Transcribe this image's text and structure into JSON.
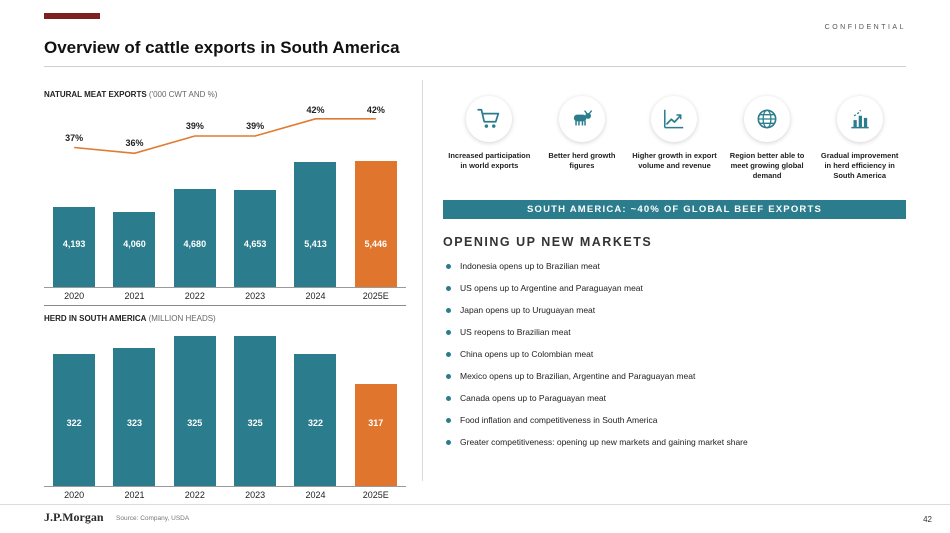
{
  "meta": {
    "confidential": "CONFIDENTIAL",
    "logo": "J.P.Morgan",
    "source": "Source: Company, USDA",
    "page_number": "42"
  },
  "header": {
    "title": "Overview of cattle exports in South America"
  },
  "colors": {
    "teal": "#2B7D8E",
    "orange": "#E0752D",
    "line_orange": "#E07A30",
    "maroon": "#7E2021"
  },
  "chart_data": [
    {
      "type": "bar",
      "title": "NATURAL MEAT EXPORTS",
      "title_suffix": " ('000 CWT AND %)",
      "categories": [
        "2020",
        "2021",
        "2022",
        "2023",
        "2024",
        "2025E"
      ],
      "series": [
        {
          "name": "exports_000_cwt",
          "type": "bar",
          "values": [
            4193,
            4060,
            4680,
            4653,
            5413,
            5446
          ],
          "labels": [
            "4,193",
            "4,060",
            "4,680",
            "4,653",
            "5,413",
            "5,446"
          ]
        },
        {
          "name": "share_of_world_exports_pct",
          "type": "line",
          "values": [
            37,
            36,
            39,
            39,
            42,
            42
          ],
          "labels": [
            "37%",
            "36%",
            "39%",
            "39%",
            "42%",
            "42%"
          ]
        }
      ],
      "ylim": [
        2000,
        5446
      ],
      "line_range": [
        35,
        43
      ],
      "highlight_last": true,
      "legend_position": "none",
      "grid": false
    },
    {
      "type": "bar",
      "title": "HERD IN SOUTH AMERICA",
      "title_suffix": " (MILLION HEADS)",
      "categories": [
        "2020",
        "2021",
        "2022",
        "2023",
        "2024",
        "2025E"
      ],
      "series": [
        {
          "name": "herd_million_heads",
          "type": "bar",
          "values": [
            322,
            323,
            325,
            325,
            322,
            317
          ],
          "labels": [
            "322",
            "323",
            "325",
            "325",
            "322",
            "317"
          ]
        }
      ],
      "ylim": [
        300,
        325
      ],
      "highlight_last": true,
      "legend_position": "none",
      "grid": false
    }
  ],
  "highlights": [
    {
      "icon": "cart-icon",
      "label": "Increased participation in world exports"
    },
    {
      "icon": "cattle-icon",
      "label": "Better herd growth figures"
    },
    {
      "icon": "growth-chart-icon",
      "label": "Higher growth in export volume and revenue"
    },
    {
      "icon": "globe-icon",
      "label": "Region better able to meet growing global demand"
    },
    {
      "icon": "herd-efficiency-chart-icon",
      "label": "Gradual improvement in herd efficiency in South America"
    }
  ],
  "banner": {
    "text": "SOUTH AMERICA: ~40% OF GLOBAL BEEF EXPORTS"
  },
  "markets": {
    "title": "OPENING UP NEW MARKETS",
    "items": [
      "Indonesia opens up to Brazilian meat",
      "US opens up to Argentine and Paraguayan meat",
      "Japan opens up to Uruguayan meat",
      "US reopens to Brazilian meat",
      "China opens up to Colombian meat",
      "Mexico opens up to Brazilian, Argentine and Paraguayan meat",
      "Canada opens up to Paraguayan meat",
      "Food inflation and competitiveness in South America",
      "Greater competitiveness: opening up new markets and gaining market share"
    ]
  }
}
